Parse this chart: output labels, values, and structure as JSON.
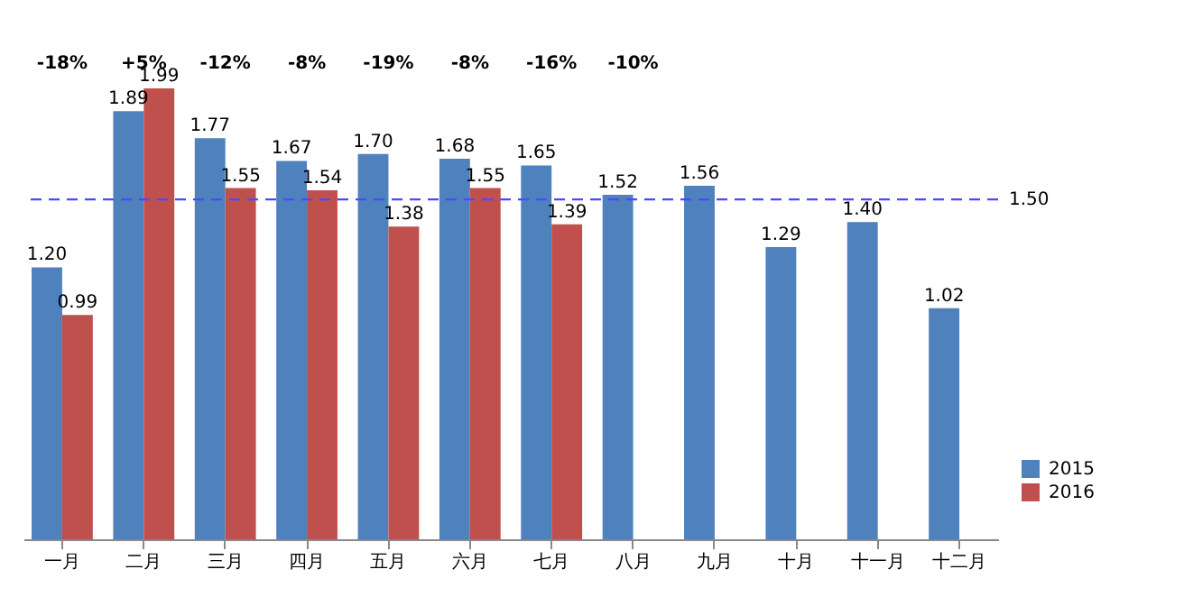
{
  "chart_data": {
    "type": "bar",
    "categories": [
      "一月",
      "二月",
      "三月",
      "四月",
      "五月",
      "六月",
      "七月",
      "八月",
      "九月",
      "十月",
      "十一月",
      "十二月"
    ],
    "series": [
      {
        "name": "2015",
        "color": "#4f81bd",
        "values": [
          1.2,
          1.89,
          1.77,
          1.67,
          1.7,
          1.68,
          1.65,
          1.52,
          1.56,
          1.29,
          1.4,
          1.02
        ],
        "value_labels": [
          "1.20",
          "1.89",
          "1.77",
          "1.67",
          "1.70",
          "1.68",
          "1.65",
          "1.52",
          "1.56",
          "1.29",
          "1.40",
          "1.02"
        ]
      },
      {
        "name": "2016",
        "color": "#c0504d",
        "values": [
          0.99,
          1.99,
          1.55,
          1.54,
          1.38,
          1.55,
          1.39,
          null,
          null,
          null,
          null,
          null
        ],
        "value_labels": [
          "0.99",
          "1.99",
          "1.55",
          "1.54",
          "1.38",
          "1.55",
          "1.39",
          null,
          null,
          null,
          null,
          null
        ]
      }
    ],
    "tick_labels": "x",
    "grid": false,
    "legend": "bottom right",
    "ref_lines": [
      {
        "axis": "y",
        "value": 1.5,
        "label": "1.50",
        "color": "#4a4aff",
        "line_style": "dashed"
      }
    ],
    "annotations": [
      "-18%",
      "+5%",
      "-12%",
      "-8%",
      "-19%",
      "-8%",
      "-16%",
      "-10%"
    ]
  }
}
